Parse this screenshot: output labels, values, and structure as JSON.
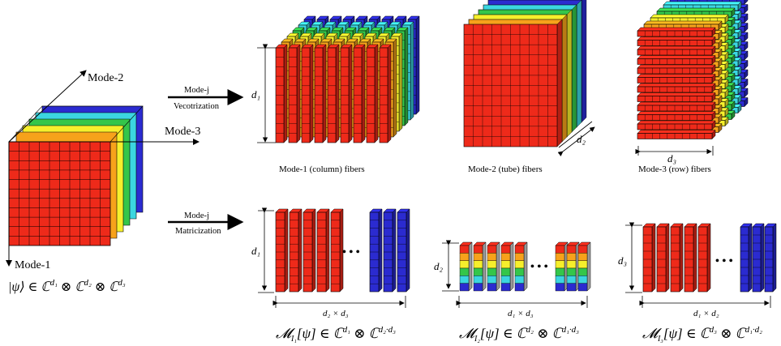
{
  "axes": {
    "mode1": "Mode-1",
    "mode2": "Mode-2",
    "mode3": "Mode-3"
  },
  "tensor_formula": "|ψ⟩ ∈ ℂ^d₁ ⊗ ℂ^d₂ ⊗ ℂ^d₃",
  "vectorization_arrow": {
    "top": "Mode-j",
    "bottom": "Vecotrization"
  },
  "matricization_arrow": {
    "top": "Mode-j",
    "bottom": "Matricization"
  },
  "fiber_captions": {
    "mode1": "Mode-1 (column) fibers",
    "mode2": "Mode-2 (tube) fibers",
    "mode3": "Mode-3 (row) fibers"
  },
  "dims": {
    "d1": "d₁",
    "d2": "d₂",
    "d3": "d₃",
    "d2xd3": "d₂ × d₃",
    "d1xd3": "d₁ × d₃",
    "d1xd2": "d₁ × d₂"
  },
  "ellipsis": "• • •",
  "matrix_formulas": {
    "m1": "𝓜_I₁[ψ] ∈ ℂ^d₁ ⊗ ℂ^d₂·d₃",
    "m2": "𝓜_I₂[ψ] ∈ ℂ^d₂ ⊗ ℂ^d₁·d₃",
    "m3": "𝓜_I₃[ψ] ∈ ℂ^d₃ ⊗ ℂ^d₁·d₂"
  },
  "colors": {
    "red": "#ee2a1a",
    "orange": "#f7a21b",
    "yellow": "#f6ef2c",
    "green": "#34c64a",
    "cyan": "#3bd6e0",
    "blue": "#2b2bd0"
  }
}
